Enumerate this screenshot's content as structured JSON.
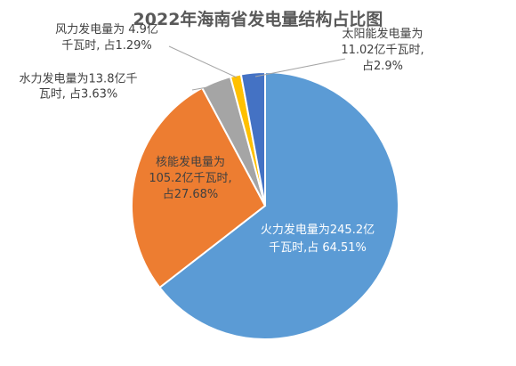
{
  "chart_data": {
    "type": "pie",
    "title": "2022年海南省发电量结构占比图",
    "unit": "亿千瓦时",
    "start_angle_deg": 0,
    "direction": "clockwise",
    "slices": [
      {
        "name": "火力发电量",
        "value": 245.2,
        "percent": 64.51,
        "color": "#5b9bd5",
        "label_lines": [
          "火力发电量为245.2亿",
          "千瓦时,占 64.51%"
        ],
        "label_style": "inside"
      },
      {
        "name": "核能发电量",
        "value": 105.2,
        "percent": 27.68,
        "color": "#ed7d31",
        "label_lines": [
          "核能发电量为",
          "105.2亿千瓦时,",
          "占27.68%"
        ],
        "label_style": "inside-dark"
      },
      {
        "name": "水力发电量",
        "value": 13.8,
        "percent": 3.63,
        "color": "#a5a5a5",
        "label_lines": [
          "水力发电量为13.8亿千",
          "瓦时, 占3.63%"
        ],
        "label_style": "outside-left"
      },
      {
        "name": "风力发电量",
        "value": 4.9,
        "percent": 1.29,
        "color": "#ffc000",
        "label_lines": [
          "风力发电量为 4.9亿",
          "千瓦时, 占1.29%"
        ],
        "label_style": "outside-left"
      },
      {
        "name": "太阳能发电量",
        "value": 11.02,
        "percent": 2.9,
        "color": "#4472c4",
        "label_lines": [
          "太阳能发电量为",
          "11.02亿千瓦时,",
          "占2.9%"
        ],
        "label_style": "outside-right"
      }
    ],
    "legend": "none"
  }
}
